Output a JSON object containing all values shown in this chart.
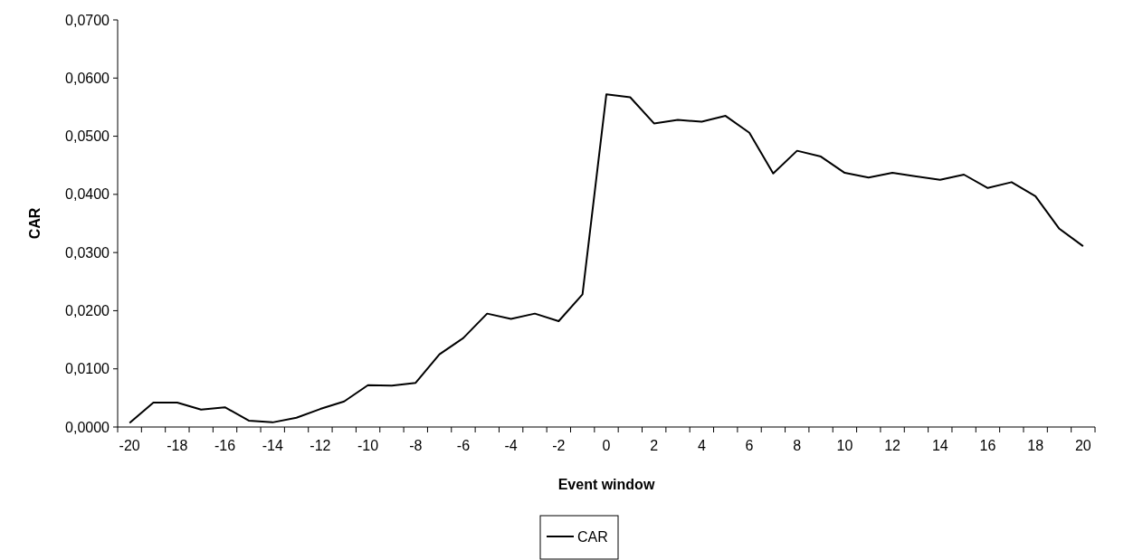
{
  "chart_data": {
    "type": "line",
    "xlabel": "Event window",
    "ylabel": "CAR",
    "categories": [
      "-20",
      null,
      "-18",
      null,
      "-16",
      null,
      "-14",
      null,
      "-12",
      null,
      "-10",
      null,
      "-8",
      null,
      "-6",
      null,
      "-4",
      null,
      "-2",
      null,
      "0",
      null,
      "2",
      null,
      "4",
      null,
      "6",
      null,
      "8",
      null,
      "10",
      null,
      "12",
      null,
      "14",
      null,
      "16",
      null,
      "18",
      null,
      "20"
    ],
    "series": [
      {
        "name": "CAR",
        "color": "#000000",
        "values": [
          0.0007,
          0.0042,
          0.0042,
          0.003,
          0.0034,
          0.0011,
          0.0008,
          0.0016,
          0.0031,
          0.0044,
          0.0072,
          0.0071,
          0.0076,
          0.0125,
          0.0153,
          0.0195,
          0.0186,
          0.0195,
          0.0182,
          0.0228,
          0.0572,
          0.0567,
          0.0522,
          0.0528,
          0.0525,
          0.0535,
          0.0506,
          0.0436,
          0.0475,
          0.0465,
          0.0437,
          0.0429,
          0.0437,
          0.0431,
          0.0425,
          0.0434,
          0.0411,
          0.0421,
          0.0397,
          0.0341,
          0.0311
        ]
      }
    ],
    "ylim": [
      0,
      0.07
    ],
    "yticks": [
      {
        "value": 0,
        "label": "0,0000"
      },
      {
        "value": 0.01,
        "label": "0,0100"
      },
      {
        "value": 0.02,
        "label": "0,0200"
      },
      {
        "value": 0.03,
        "label": "0,0300"
      },
      {
        "value": 0.04,
        "label": "0,0400"
      },
      {
        "value": 0.05,
        "label": "0,0500"
      },
      {
        "value": 0.06,
        "label": "0,0600"
      },
      {
        "value": 0.07,
        "label": "0,0700"
      }
    ],
    "legend": "bottom",
    "grid": false,
    "marker": "none",
    "line_style": "solid"
  }
}
